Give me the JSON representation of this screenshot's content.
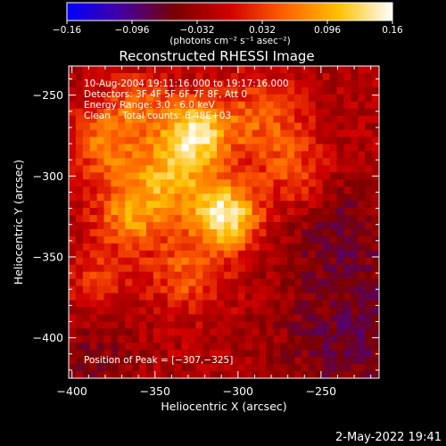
{
  "chart_data": {
    "type": "heatmap",
    "title": "Reconstructed RHESSI Image",
    "xlabel": "Heliocentric X (arcsec)",
    "ylabel": "Heliocentric Y (arcsec)",
    "xlim": [
      -402,
      -215
    ],
    "ylim": [
      -425,
      -232
    ],
    "x_ticks": [
      -400,
      -350,
      -300,
      -250
    ],
    "y_ticks": [
      -250,
      -300,
      -350,
      -400
    ],
    "x_tick_labels": [
      "−400",
      "−350",
      "−300",
      "−250"
    ],
    "y_tick_labels": [
      "−250",
      "−300",
      "−350",
      "−400"
    ],
    "colorbar": {
      "range": [
        -0.16,
        0.16
      ],
      "ticks": [
        -0.16,
        -0.096,
        -0.032,
        0.032,
        0.096,
        0.16
      ],
      "tick_labels": [
        "−0.16",
        "−0.096",
        "−0.032",
        "0.032",
        "0.096",
        "0.16"
      ],
      "units_label": "(photons cm⁻² s⁻¹ asec⁻²)",
      "colors": [
        "#0000ff",
        "#4400a0",
        "#7a0000",
        "#d00000",
        "#ff6000",
        "#ffc000",
        "#ffffff"
      ]
    },
    "peak": {
      "x": -307,
      "y": -325,
      "value": 0.16
    },
    "background_value": -0.02,
    "sources": [
      {
        "x": -307,
        "y": -325,
        "amplitude": 0.16,
        "sigma": 14
      },
      {
        "x": -325,
        "y": -272,
        "amplitude": 0.14,
        "sigma": 14
      },
      {
        "x": -340,
        "y": -300,
        "amplitude": 0.11,
        "sigma": 18
      },
      {
        "x": -365,
        "y": -325,
        "amplitude": 0.09,
        "sigma": 15
      },
      {
        "x": -380,
        "y": -280,
        "amplitude": 0.08,
        "sigma": 16
      },
      {
        "x": -285,
        "y": -265,
        "amplitude": 0.07,
        "sigma": 18
      },
      {
        "x": -265,
        "y": -300,
        "amplitude": 0.06,
        "sigma": 16
      },
      {
        "x": -330,
        "y": -360,
        "amplitude": 0.07,
        "sigma": 16
      },
      {
        "x": -385,
        "y": -365,
        "amplitude": 0.05,
        "sigma": 14
      },
      {
        "x": -360,
        "y": -255,
        "amplitude": 0.06,
        "sigma": 13
      },
      {
        "x": -230,
        "y": -400,
        "amplitude": -0.05,
        "sigma": 30
      },
      {
        "x": -240,
        "y": -330,
        "amplitude": -0.04,
        "sigma": 25
      },
      {
        "x": -390,
        "y": -415,
        "amplitude": -0.03,
        "sigma": 20
      }
    ],
    "annotations": {
      "time_range": "10-Aug-2004 19:11:16.000 to 19:17:16.000",
      "detectors": "Detectors: 3F 4F 5F 6F 7F 8F, Att 0",
      "energy": "Energy Range: 3.0 - 6.0 keV",
      "method": "Clean    Total counts: 8.48E+03",
      "peak_label": "Position of Peak = [−307,−325]"
    }
  },
  "footer": {
    "date": "2-May-2022 19:41"
  }
}
